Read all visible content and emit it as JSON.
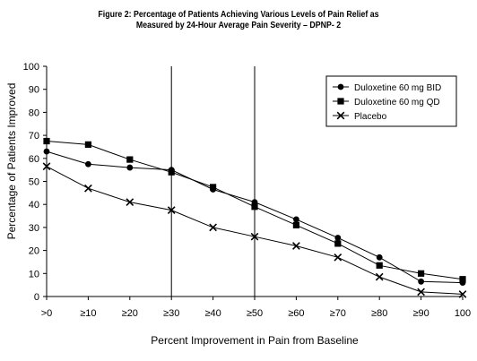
{
  "chart_data": {
    "type": "line",
    "title_lines": [
      "Figure 2: Percentage of Patients Achieving Various Levels of Pain Relief as",
      "Measured by 24-Hour Average Pain Severity – DPNP- 2"
    ],
    "xlabel": "Percent Improvement in Pain from Baseline",
    "ylabel": "Percentage of Patients Improved",
    "categories": [
      ">0",
      "≥10",
      "≥20",
      "≥30",
      "≥40",
      "≥50",
      "≥60",
      "≥70",
      "≥80",
      "≥90",
      "100"
    ],
    "yticks": [
      "0",
      "10",
      "20",
      "30",
      "40",
      "50",
      "60",
      "70",
      "80",
      "90",
      "100"
    ],
    "ylim": [
      0,
      100
    ],
    "reference_lines_at": [
      "≥30",
      "≥50"
    ],
    "legend_position": "top-right",
    "series": [
      {
        "name": "Duloxetine 60 mg BID",
        "marker": "circle",
        "values": [
          63,
          57.5,
          56,
          55,
          46.5,
          41,
          33.5,
          25.5,
          17,
          6.5,
          6
        ]
      },
      {
        "name": "Duloxetine 60 mg QD",
        "marker": "square",
        "values": [
          67.5,
          66,
          59.5,
          54,
          47.5,
          39,
          31,
          23,
          13.5,
          10,
          7.5
        ]
      },
      {
        "name": "Placebo",
        "marker": "x",
        "values": [
          56.5,
          47,
          41,
          37.5,
          30,
          26,
          22,
          17,
          8.5,
          2,
          1
        ]
      }
    ]
  }
}
